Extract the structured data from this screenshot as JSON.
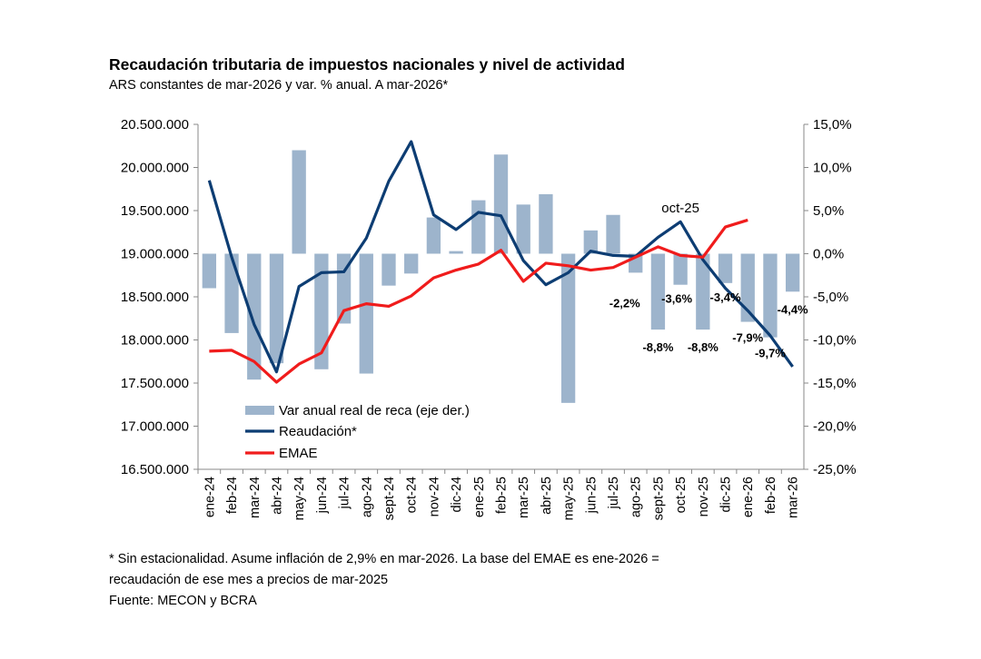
{
  "chart_data": {
    "type": "bar+line",
    "title": "Recaudación tributaria de impuestos nacionales y nivel de actividad",
    "subtitle": "ARS constantes de mar-2026 y var. % anual. A mar-2026*",
    "categories": [
      "ene-24",
      "feb-24",
      "mar-24",
      "abr-24",
      "may-24",
      "jun-24",
      "jul-24",
      "ago-24",
      "sept-24",
      "oct-24",
      "nov-24",
      "dic-24",
      "ene-25",
      "feb-25",
      "mar-25",
      "abr-25",
      "may-25",
      "jun-25",
      "jul-25",
      "ago-25",
      "sept-25",
      "oct-25",
      "nov-25",
      "dic-25",
      "ene-26",
      "feb-26",
      "mar-26"
    ],
    "left_axis": {
      "range": [
        16500000,
        20500000
      ],
      "ticks": [
        "16.500.000",
        "17.000.000",
        "17.500.000",
        "18.000.000",
        "18.500.000",
        "19.000.000",
        "19.500.000",
        "20.000.000",
        "20.500.000"
      ]
    },
    "right_axis": {
      "range": [
        -25,
        15
      ],
      "ticks": [
        "-25,0%",
        "-20,0%",
        "-15,0%",
        "-10,0%",
        "-5,0%",
        "0,0%",
        "5,0%",
        "10,0%",
        "15,0%"
      ]
    },
    "grid": false,
    "legend_position": "bottom-left",
    "series": [
      {
        "name": "Var anual real de reca (eje der.)",
        "type": "bar",
        "axis": "right",
        "color": "#9db4cc",
        "values": [
          -4.0,
          -9.2,
          -14.6,
          -12.7,
          12.0,
          -13.4,
          -8.1,
          -13.9,
          -3.7,
          -2.3,
          4.2,
          0.3,
          6.2,
          11.5,
          5.7,
          6.9,
          -17.3,
          2.7,
          4.5,
          -2.2,
          -8.8,
          -3.6,
          -8.8,
          -3.4,
          -7.9,
          -9.7,
          -4.4
        ]
      },
      {
        "name": "Reaudación*",
        "type": "line",
        "axis": "left",
        "color": "#0d3d73",
        "values": [
          19850000,
          18960000,
          18180000,
          17630000,
          18620000,
          18780000,
          18790000,
          19180000,
          19840000,
          20300000,
          19450000,
          19280000,
          19480000,
          19440000,
          18920000,
          18640000,
          18780000,
          19030000,
          18980000,
          18970000,
          19190000,
          19370000,
          18930000,
          18600000,
          18340000,
          18050000,
          17690000
        ]
      },
      {
        "name": "EMAE",
        "type": "line",
        "axis": "left",
        "color": "#f01c1c",
        "values": [
          17870000,
          17880000,
          17750000,
          17510000,
          17720000,
          17850000,
          18340000,
          18420000,
          18390000,
          18510000,
          18720000,
          18810000,
          18880000,
          19040000,
          18680000,
          18890000,
          18860000,
          18810000,
          18840000,
          18960000,
          19080000,
          18980000,
          18960000,
          19310000,
          19390000,
          null,
          null
        ]
      }
    ],
    "data_labels": [
      {
        "category": "ago-25",
        "text": "-2,2%"
      },
      {
        "category": "sept-25",
        "text": "-8,8%"
      },
      {
        "category": "oct-25",
        "text": "-3,6%"
      },
      {
        "category": "nov-25",
        "text": "-8,8%"
      },
      {
        "category": "dic-25",
        "text": "-3,4%"
      },
      {
        "category": "ene-26",
        "text": "-7,9%"
      },
      {
        "category": "feb-26",
        "text": "-9,7%"
      },
      {
        "category": "mar-26",
        "text": "-4,4%"
      }
    ],
    "annotation": {
      "category": "oct-25",
      "text": "oct-25"
    }
  },
  "footnotes": [
    "* Sin estacionalidad. Asume inflación de 2,9% en mar-2026. La base del EMAE es ene-2026 =",
    "recaudación de ese mes a precios de mar-2025",
    "Fuente: MECON y BCRA"
  ]
}
